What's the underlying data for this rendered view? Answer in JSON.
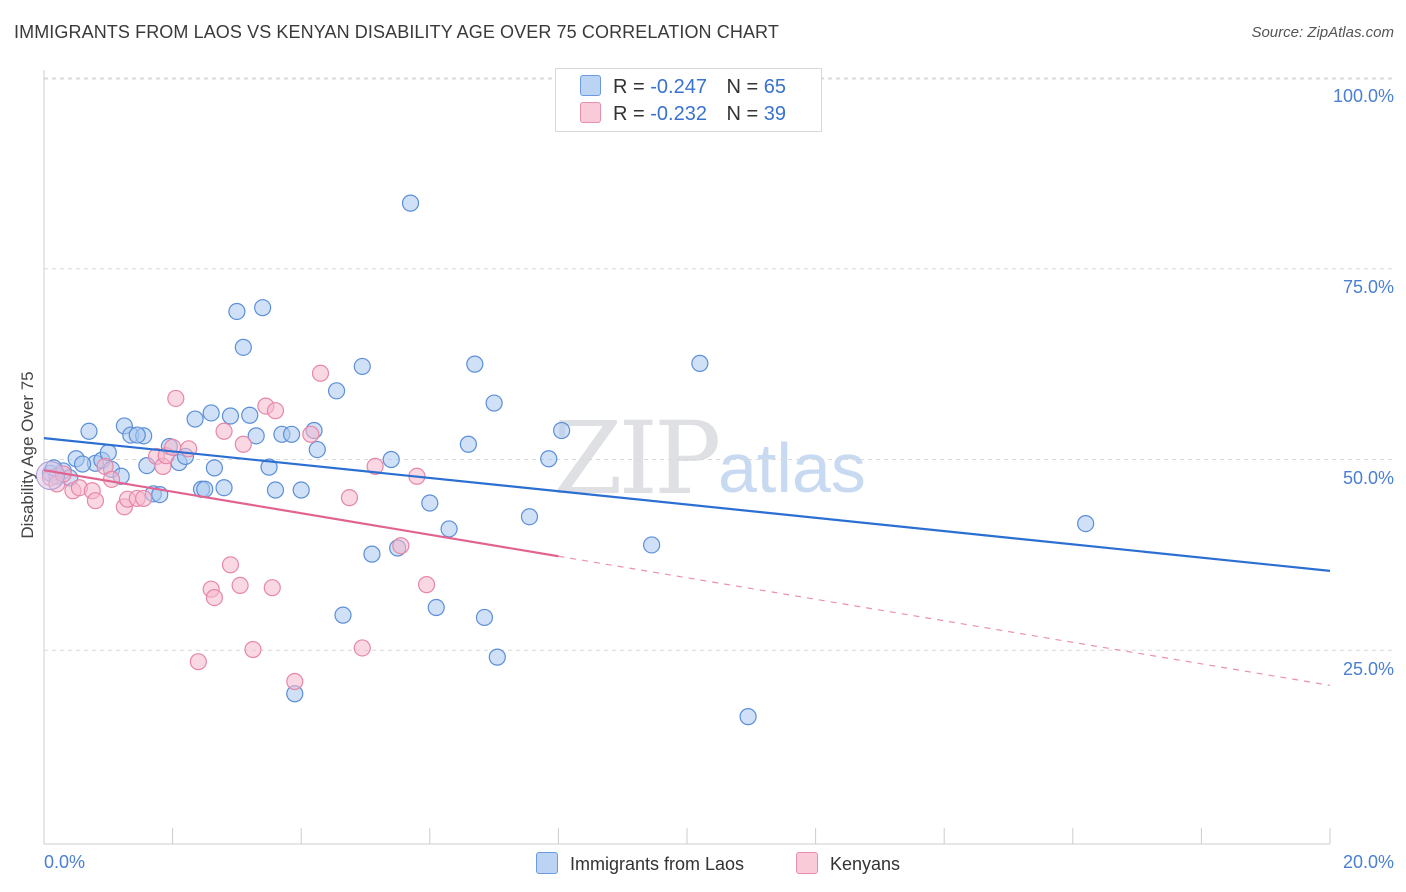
{
  "title": "IMMIGRANTS FROM LAOS VS KENYAN DISABILITY AGE OVER 75 CORRELATION CHART",
  "source": "Source: ZipAtlas.com",
  "watermark": {
    "zip": "ZIP",
    "atlas": "atlas"
  },
  "legend_top": {
    "rows": [
      {
        "r_label": "R =",
        "r_value": "-0.247",
        "n_label": "N =",
        "n_value": "65"
      },
      {
        "r_label": "R =",
        "r_value": "-0.232",
        "n_label": "N =",
        "n_value": "39"
      }
    ]
  },
  "legend_bottom": {
    "series1": "Immigrants from Laos",
    "series2": "Kenyans"
  },
  "colors": {
    "blue_fill": "#a9c8f0",
    "blue_stroke": "#5b8fd8",
    "blue_line": "#2a6fd1",
    "pink_fill": "#f6b8cc",
    "pink_stroke": "#e687a8",
    "pink_line": "#e0648f",
    "axis_text": "#4a7fd4",
    "grid": "#d9d9d9"
  },
  "chart_data": {
    "type": "scatter",
    "title": "IMMIGRANTS FROM LAOS VS KENYAN DISABILITY AGE OVER 75 CORRELATION CHART",
    "xlabel": "",
    "ylabel": "Disability Age Over 75",
    "xlim": [
      0,
      20
    ],
    "ylim": [
      0,
      105
    ],
    "x_tick_labels": [
      "0.0%",
      "20.0%"
    ],
    "y_ticks": [
      25,
      50,
      75,
      100
    ],
    "y_tick_labels": [
      "25.0%",
      "50.0%",
      "75.0%",
      "100.0%"
    ],
    "grid": true,
    "legend": "top-center",
    "series": [
      {
        "name": "Immigrants from Laos",
        "stats": {
          "R": -0.247,
          "N": 65
        },
        "trend": {
          "x": [
            0,
            20
          ],
          "y": [
            52.8,
            35.4
          ],
          "dashed_from_x": null
        },
        "points": [
          [
            0.1,
            48.2
          ],
          [
            0.2,
            47.8
          ],
          [
            0.3,
            48.5
          ],
          [
            0.4,
            47.6
          ],
          [
            0.5,
            50.1
          ],
          [
            0.7,
            53.7
          ],
          [
            0.8,
            49.5
          ],
          [
            0.9,
            49.9
          ],
          [
            1.0,
            50.9
          ],
          [
            1.05,
            48.7
          ],
          [
            1.2,
            47.8
          ],
          [
            1.25,
            54.4
          ],
          [
            1.35,
            53.2
          ],
          [
            1.55,
            53.1
          ],
          [
            1.6,
            49.2
          ],
          [
            1.7,
            45.5
          ],
          [
            1.8,
            45.4
          ],
          [
            1.95,
            51.7
          ],
          [
            2.1,
            49.6
          ],
          [
            2.2,
            50.4
          ],
          [
            2.35,
            55.3
          ],
          [
            2.45,
            46.1
          ],
          [
            2.6,
            56.1
          ],
          [
            2.65,
            48.9
          ],
          [
            2.8,
            46.3
          ],
          [
            2.9,
            55.7
          ],
          [
            3.0,
            69.4
          ],
          [
            3.1,
            64.7
          ],
          [
            3.2,
            55.8
          ],
          [
            3.3,
            53.1
          ],
          [
            3.4,
            69.9
          ],
          [
            3.5,
            49.0
          ],
          [
            3.6,
            46.0
          ],
          [
            3.7,
            53.3
          ],
          [
            3.85,
            53.3
          ],
          [
            4.0,
            46.0
          ],
          [
            4.2,
            53.8
          ],
          [
            4.25,
            51.3
          ],
          [
            4.55,
            59.0
          ],
          [
            4.65,
            29.6
          ],
          [
            4.95,
            62.2
          ],
          [
            5.1,
            37.6
          ],
          [
            5.4,
            50.0
          ],
          [
            5.5,
            38.4
          ],
          [
            5.7,
            83.6
          ],
          [
            6.0,
            44.3
          ],
          [
            6.1,
            30.6
          ],
          [
            6.3,
            40.9
          ],
          [
            6.6,
            52.0
          ],
          [
            6.7,
            62.5
          ],
          [
            6.85,
            29.3
          ],
          [
            7.0,
            57.4
          ],
          [
            7.05,
            24.1
          ],
          [
            7.55,
            42.5
          ],
          [
            7.85,
            50.1
          ],
          [
            8.05,
            53.8
          ],
          [
            9.45,
            38.8
          ],
          [
            10.2,
            62.6
          ],
          [
            10.95,
            16.3
          ],
          [
            16.2,
            41.6
          ],
          [
            3.9,
            19.3
          ],
          [
            1.45,
            53.2
          ],
          [
            0.6,
            49.4
          ],
          [
            2.5,
            46.1
          ],
          [
            0.15,
            48.9
          ]
        ]
      },
      {
        "name": "Kenyans",
        "stats": {
          "R": -0.232,
          "N": 39
        },
        "trend": {
          "x": [
            0,
            20
          ],
          "y": [
            48.6,
            20.4
          ],
          "dashed_from_x": 8.0
        },
        "points": [
          [
            0.1,
            47.6
          ],
          [
            0.2,
            46.8
          ],
          [
            0.3,
            48.1
          ],
          [
            0.45,
            45.9
          ],
          [
            0.55,
            46.3
          ],
          [
            0.75,
            45.9
          ],
          [
            0.8,
            44.6
          ],
          [
            0.95,
            49.1
          ],
          [
            1.05,
            47.4
          ],
          [
            1.25,
            43.8
          ],
          [
            1.3,
            44.8
          ],
          [
            1.45,
            44.9
          ],
          [
            1.55,
            44.9
          ],
          [
            1.75,
            50.4
          ],
          [
            1.85,
            49.1
          ],
          [
            1.9,
            50.5
          ],
          [
            2.0,
            51.6
          ],
          [
            2.05,
            58.0
          ],
          [
            2.25,
            51.4
          ],
          [
            2.4,
            23.5
          ],
          [
            2.6,
            33.0
          ],
          [
            2.65,
            31.9
          ],
          [
            2.8,
            53.7
          ],
          [
            2.9,
            36.2
          ],
          [
            3.05,
            33.5
          ],
          [
            3.1,
            52.0
          ],
          [
            3.25,
            25.1
          ],
          [
            3.45,
            57.0
          ],
          [
            3.55,
            33.2
          ],
          [
            3.6,
            56.4
          ],
          [
            3.9,
            20.9
          ],
          [
            4.15,
            53.3
          ],
          [
            4.3,
            61.3
          ],
          [
            4.75,
            45.0
          ],
          [
            4.95,
            25.3
          ],
          [
            5.15,
            49.1
          ],
          [
            5.55,
            38.7
          ],
          [
            5.8,
            47.8
          ],
          [
            5.95,
            33.6
          ]
        ]
      }
    ]
  }
}
